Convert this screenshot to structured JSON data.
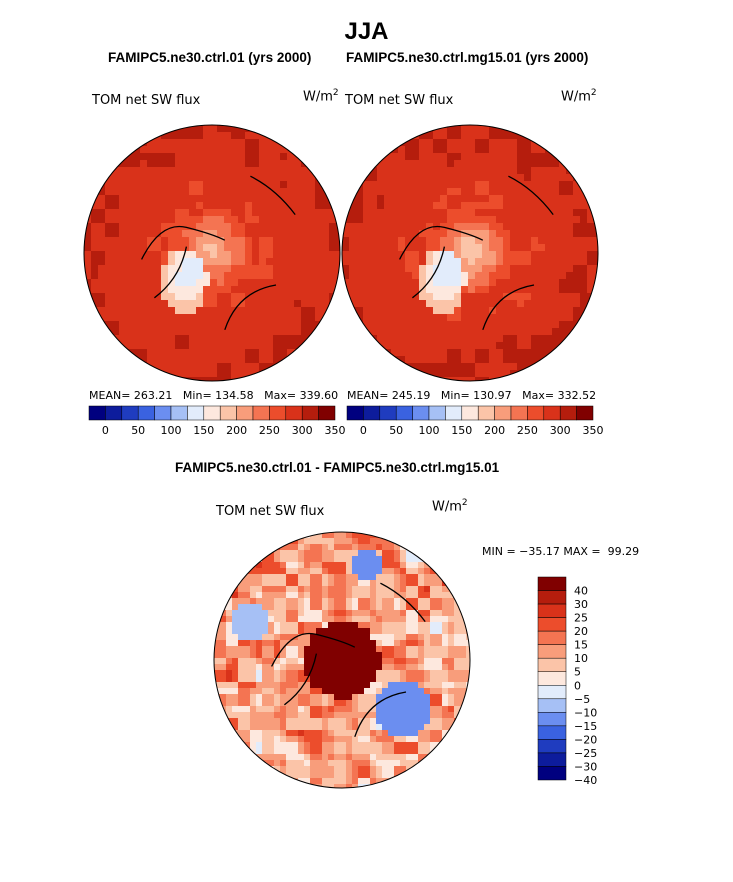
{
  "figure": {
    "title": "JJA",
    "palette": {
      "abs": [
        "#00007f",
        "#0d1c9c",
        "#1f3cbf",
        "#3a62e0",
        "#6b8ef0",
        "#a6c0f5",
        "#e2ecfb",
        "#fde8de",
        "#fbc4a8",
        "#f89d7b",
        "#f47452",
        "#ec4d2c",
        "#d9321a",
        "#b51d0d",
        "#800000"
      ],
      "diff": [
        "#00007f",
        "#0d1c9c",
        "#1f3cbf",
        "#3a62e0",
        "#6b8ef0",
        "#a6c0f5",
        "#e2ecfb",
        "#fde8de",
        "#fbc4a8",
        "#f89d7b",
        "#f47452",
        "#ec4d2c",
        "#d9321a",
        "#b51d0d",
        "#800000"
      ]
    }
  },
  "chart_data": [
    {
      "type": "polar-contour-map",
      "id": "left",
      "title": "FAMIPC5.ne30.ctrl.01 (yrs 2000)",
      "variable": "TOM net SW flux",
      "units_base": "W/m",
      "units_exp": "2",
      "stats": {
        "mean_label": "MEAN=",
        "mean": "263.21",
        "min_label": "Min=",
        "min": "134.58",
        "max_label": "Max=",
        "max": "339.60"
      },
      "colorbar_ticks": [
        "0",
        "50",
        "100",
        "150",
        "200",
        "250",
        "300",
        "350"
      ],
      "levels_range": [
        0,
        350
      ]
    },
    {
      "type": "polar-contour-map",
      "id": "right",
      "title": "FAMIPC5.ne30.ctrl.mg15.01 (yrs 2000)",
      "variable": "TOM net SW flux",
      "units_base": "W/m",
      "units_exp": "2",
      "stats": {
        "mean_label": "MEAN=",
        "mean": "245.19",
        "min_label": "Min=",
        "min": "130.97",
        "max_label": "Max=",
        "max": "332.52"
      },
      "colorbar_ticks": [
        "0",
        "50",
        "100",
        "150",
        "200",
        "250",
        "300",
        "350"
      ],
      "levels_range": [
        0,
        350
      ]
    },
    {
      "type": "polar-contour-map",
      "id": "diff",
      "title": "FAMIPC5.ne30.ctrl.01 - FAMIPC5.ne30.ctrl.mg15.01",
      "variable": "TOM net SW flux",
      "units_base": "W/m",
      "units_exp": "2",
      "stats_text": "MIN = −35.17 MAX =  99.29",
      "colorbar_ticks": [
        "40",
        "30",
        "25",
        "20",
        "15",
        "10",
        "5",
        "0",
        "−5",
        "−10",
        "−15",
        "−20",
        "−25",
        "−30",
        "−40"
      ],
      "levels": [
        40,
        30,
        25,
        20,
        15,
        10,
        5,
        0,
        -5,
        -10,
        -15,
        -20,
        -25,
        -30,
        -40
      ]
    }
  ]
}
